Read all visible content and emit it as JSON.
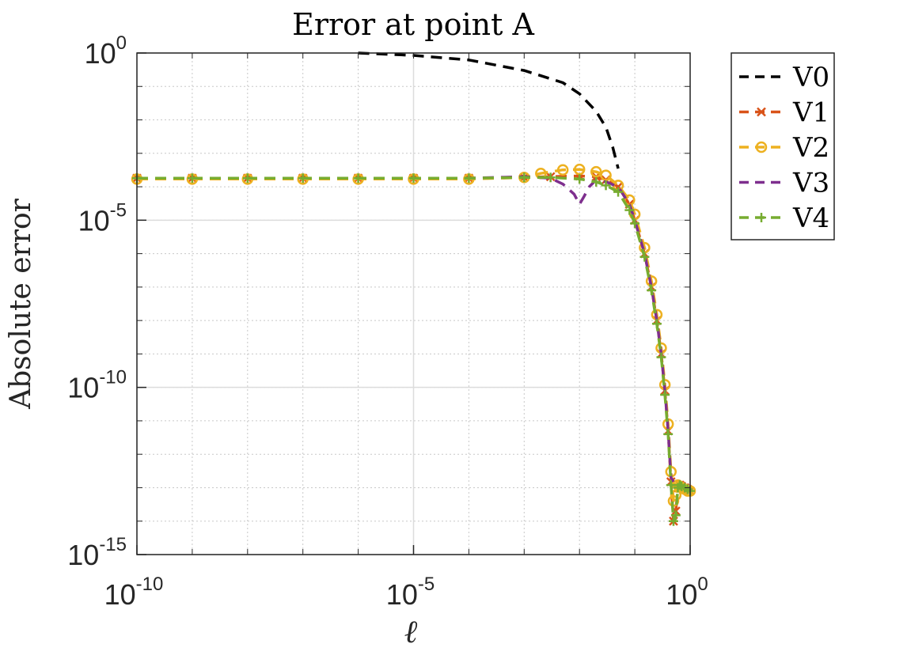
{
  "chart_data": {
    "type": "line",
    "title": "Error at point A",
    "xlabel": "ℓ",
    "ylabel": "Absolute error",
    "xscale": "log",
    "yscale": "log",
    "xlim": [
      1e-10,
      1
    ],
    "ylim": [
      1e-15,
      1
    ],
    "grid": true,
    "legend_position": "outside-right",
    "x_ticks": [
      {
        "value": 1e-10,
        "base": "10",
        "exp": "-10"
      },
      {
        "value": 1e-05,
        "base": "10",
        "exp": "-5"
      },
      {
        "value": 1,
        "base": "10",
        "exp": "0"
      }
    ],
    "y_ticks": [
      {
        "value": 1,
        "base": "10",
        "exp": "0"
      },
      {
        "value": 1e-05,
        "base": "10",
        "exp": "-5"
      },
      {
        "value": 1e-10,
        "base": "10",
        "exp": "-10"
      },
      {
        "value": 1e-15,
        "base": "10",
        "exp": "-15"
      }
    ],
    "series": [
      {
        "name": "V0",
        "color": "#000000",
        "style": "dashed",
        "marker": "none",
        "x": [
          1e-06,
          1e-05,
          0.0001,
          0.001,
          0.005,
          0.01,
          0.02,
          0.03,
          0.04,
          0.05
        ],
        "y": [
          1.0,
          0.85,
          0.62,
          0.3,
          0.13,
          0.06,
          0.018,
          0.006,
          0.0015,
          0.00035
        ]
      },
      {
        "name": "V1",
        "color": "#D95319",
        "style": "dashed",
        "marker": "x",
        "x": [
          1e-10,
          1e-09,
          1e-08,
          1e-07,
          1e-06,
          1e-05,
          0.0001,
          0.001,
          0.003,
          0.01,
          0.02,
          0.03,
          0.05,
          0.08,
          0.1,
          0.15,
          0.2,
          0.25,
          0.3,
          0.35,
          0.4,
          0.45,
          0.5,
          0.55,
          0.6,
          0.65,
          0.7,
          0.8,
          0.9,
          1.0
        ],
        "y": [
          0.00018,
          0.00018,
          0.00018,
          0.00018,
          0.00018,
          0.00018,
          0.00018,
          0.00019,
          0.0002,
          0.00021,
          0.0002,
          0.00016,
          0.0001,
          3e-05,
          1e-05,
          1e-06,
          1e-07,
          1e-08,
          1e-09,
          8e-11,
          5e-12,
          1.5e-13,
          1e-14,
          2e-14,
          1e-13,
          1.2e-13,
          1.1e-13,
          1e-13,
          9e-14,
          8e-14
        ]
      },
      {
        "name": "V2",
        "color": "#EDB120",
        "style": "dashed",
        "marker": "o",
        "x": [
          1e-10,
          1e-09,
          1e-08,
          1e-07,
          1e-06,
          1e-05,
          0.0001,
          0.001,
          0.002,
          0.005,
          0.01,
          0.02,
          0.03,
          0.05,
          0.08,
          0.1,
          0.15,
          0.2,
          0.25,
          0.3,
          0.35,
          0.4,
          0.45,
          0.5,
          0.55,
          0.6,
          0.65,
          0.7,
          0.8,
          0.9,
          1.0
        ],
        "y": [
          0.00017,
          0.00017,
          0.00017,
          0.00017,
          0.00017,
          0.00017,
          0.00017,
          0.00019,
          0.00025,
          0.00032,
          0.00033,
          0.00028,
          0.00022,
          0.00011,
          4e-05,
          1.5e-05,
          1.5e-06,
          1.5e-07,
          1.5e-08,
          1.5e-09,
          1.2e-10,
          8e-12,
          3e-13,
          4e-14,
          6e-14,
          1.2e-13,
          1.1e-13,
          1e-13,
          9e-14,
          8e-14,
          8e-14
        ]
      },
      {
        "name": "V3",
        "color": "#7E2F8E",
        "style": "dashed",
        "marker": "none",
        "x": [
          1e-10,
          1e-09,
          1e-08,
          1e-07,
          1e-06,
          1e-05,
          0.0001,
          0.001,
          0.003,
          0.005,
          0.008,
          0.01,
          0.012,
          0.015,
          0.02,
          0.03,
          0.05,
          0.08,
          0.1,
          0.15,
          0.2,
          0.25,
          0.3,
          0.35,
          0.4,
          0.45,
          0.5
        ],
        "y": [
          0.00018,
          0.00018,
          0.00018,
          0.00018,
          0.00018,
          0.00018,
          0.00018,
          0.0002,
          0.00018,
          0.00012,
          6e-05,
          3e-05,
          5e-05,
          0.0001,
          0.00016,
          0.00014,
          0.0001,
          3e-05,
          1e-05,
          1e-06,
          1e-07,
          1e-08,
          1e-09,
          8e-11,
          5e-12,
          2e-13,
          1.5e-13
        ]
      },
      {
        "name": "V4",
        "color": "#77AC30",
        "style": "dashed",
        "marker": "+",
        "x": [
          1e-10,
          1e-09,
          1e-08,
          1e-07,
          1e-06,
          1e-05,
          0.0001,
          0.001,
          0.003,
          0.01,
          0.02,
          0.03,
          0.05,
          0.08,
          0.1,
          0.15,
          0.2,
          0.25,
          0.3,
          0.35,
          0.4,
          0.45,
          0.5,
          0.55,
          0.6,
          0.65,
          0.7,
          0.8,
          0.9,
          1.0
        ],
        "y": [
          0.00018,
          0.00018,
          0.00018,
          0.00018,
          0.00018,
          0.00018,
          0.00018,
          0.00019,
          0.00019,
          0.00017,
          0.00014,
          0.00011,
          7e-05,
          2e-05,
          8e-06,
          8e-07,
          8e-08,
          8e-09,
          8e-10,
          6e-11,
          4e-12,
          1.2e-13,
          1e-14,
          1.5e-14,
          1e-13,
          1.2e-13,
          1.1e-13,
          1e-13,
          9e-14,
          8e-14
        ]
      }
    ]
  }
}
